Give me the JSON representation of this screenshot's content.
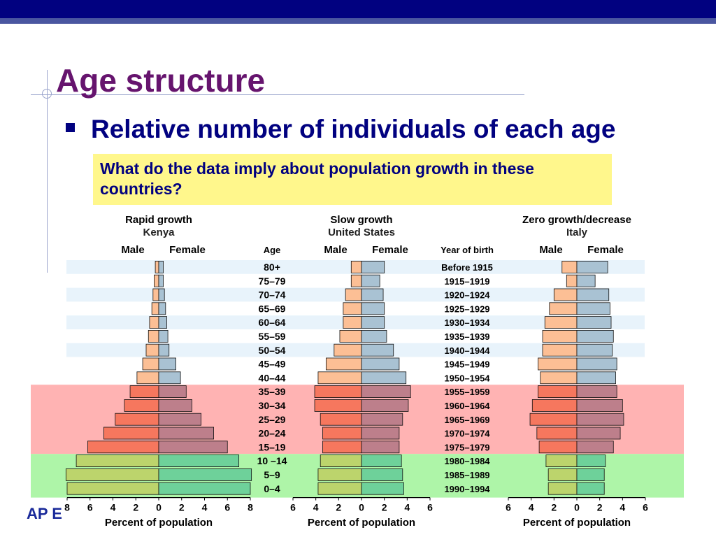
{
  "slide": {
    "title": "Age structure",
    "bullet": "Relative number of individuals of each age",
    "question": "What do the data imply about population growth in these countries?",
    "footer_partial": "AP E"
  },
  "colors": {
    "title": "#66146e",
    "text_navy": "#010180",
    "question_bg": "#fff78c",
    "male_post_reproductive": "#fcbf95",
    "female_post_reproductive": "#a9c2d3",
    "male_reproductive": "#f6775e",
    "female_reproductive": "#bd7f8b",
    "male_pre_reproductive": "#bcd46c",
    "female_pre_reproductive": "#6ed19a",
    "band_reproductive": "#ffb3b3",
    "band_pre_reproductive": "#aef5a8",
    "row_stripe": "#e8f3fb"
  },
  "chart_data": {
    "type": "population_pyramid",
    "column_headers": {
      "age": "Age",
      "year_of_birth": "Year of birth"
    },
    "age_groups": [
      "80+",
      "75–79",
      "70–74",
      "65–69",
      "60–64",
      "55–59",
      "50–54",
      "45–49",
      "40–44",
      "35–39",
      "30–34",
      "25–29",
      "20–24",
      "15–19",
      "10 –14",
      "5–9",
      "0–4"
    ],
    "years_of_birth": [
      "Before 1915",
      "1915–1919",
      "1920–1924",
      "1925–1929",
      "1930–1934",
      "1935–1939",
      "1940–1944",
      "1945–1949",
      "1950–1954",
      "1955–1959",
      "1960–1964",
      "1965–1969",
      "1970–1974",
      "1975–1979",
      "1980–1984",
      "1985–1989",
      "1990–1994"
    ],
    "pyramids": [
      {
        "title": "Rapid growth",
        "country": "Kenya",
        "male_label": "Male",
        "female_label": "Female",
        "xlabel": "Percent of population",
        "xticks": [
          "8",
          "6",
          "4",
          "2",
          "0",
          "2",
          "4",
          "6",
          "8"
        ],
        "xmax": 8,
        "male": [
          0.3,
          0.4,
          0.5,
          0.6,
          0.8,
          0.9,
          1.1,
          1.4,
          1.9,
          2.5,
          3.0,
          3.8,
          4.8,
          6.2,
          7.2,
          8.1,
          8.0
        ],
        "female": [
          0.4,
          0.4,
          0.5,
          0.6,
          0.7,
          0.8,
          0.9,
          1.5,
          1.9,
          2.4,
          2.9,
          3.7,
          4.8,
          6.0,
          7.0,
          8.1,
          8.0
        ]
      },
      {
        "title": "Slow growth",
        "country": "United States",
        "male_label": "Male",
        "female_label": "Female",
        "xlabel": "Percent of population",
        "xticks": [
          "6",
          "4",
          "2",
          "0",
          "2",
          "4",
          "6"
        ],
        "xmax": 6,
        "male": [
          0.9,
          0.9,
          1.4,
          1.6,
          1.6,
          1.9,
          2.4,
          3.1,
          3.8,
          4.1,
          4.1,
          3.6,
          3.4,
          3.4,
          3.6,
          3.8,
          3.8
        ],
        "female": [
          2.0,
          1.6,
          1.9,
          2.0,
          2.0,
          2.2,
          2.8,
          3.3,
          3.9,
          4.3,
          4.1,
          3.6,
          3.3,
          3.3,
          3.5,
          3.6,
          3.7
        ]
      },
      {
        "title": "Zero growth/decrease",
        "country": "Italy",
        "male_label": "Male",
        "female_label": "Female",
        "xlabel": "Percent of population",
        "xticks": [
          "6",
          "4",
          "2",
          "0",
          "2",
          "4",
          "6"
        ],
        "xmax": 6,
        "male": [
          1.3,
          0.9,
          2.0,
          2.4,
          2.8,
          3.0,
          3.0,
          3.4,
          3.2,
          3.4,
          3.9,
          4.1,
          3.5,
          3.3,
          2.7,
          2.5,
          2.5
        ],
        "female": [
          2.7,
          1.6,
          2.8,
          2.9,
          3.0,
          3.2,
          3.1,
          3.5,
          3.4,
          3.5,
          4.0,
          4.1,
          3.8,
          3.2,
          2.5,
          2.4,
          2.4
        ]
      }
    ],
    "band_groups": {
      "post_reproductive_end": 8,
      "reproductive_end": 13
    }
  }
}
